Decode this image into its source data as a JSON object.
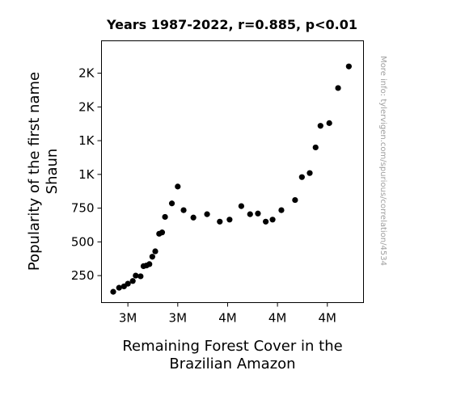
{
  "chart_data": {
    "type": "scatter",
    "title": "Years 1987-2022, r=0.885, p<0.01",
    "xlabel": [
      "Remaining Forest Cover in the",
      "Brazilian Amazon"
    ],
    "ylabel": [
      "Popularity of the first name",
      "Shaun"
    ],
    "watermark": "More info: tylervigen.com/spurious/correlation/4534",
    "xlim": [
      3.258,
      3.526
    ],
    "ylim": [
      50,
      1990
    ],
    "x_ticks": [
      {
        "value": 3.285,
        "label": "3M"
      },
      {
        "value": 3.336,
        "label": "3M"
      },
      {
        "value": 3.387,
        "label": "4M"
      },
      {
        "value": 3.438,
        "label": "4M"
      },
      {
        "value": 3.489,
        "label": "4M"
      }
    ],
    "y_ticks": [
      {
        "value": 250,
        "label": "250"
      },
      {
        "value": 500,
        "label": "500"
      },
      {
        "value": 750,
        "label": "750"
      },
      {
        "value": 1000,
        "label": "1K"
      },
      {
        "value": 1250,
        "label": "1K"
      },
      {
        "value": 1500,
        "label": "2K"
      },
      {
        "value": 1750,
        "label": "2K"
      }
    ],
    "grid": false,
    "marker_color": "#000000",
    "points": [
      {
        "x": 3.27,
        "y": 130
      },
      {
        "x": 3.276,
        "y": 160
      },
      {
        "x": 3.281,
        "y": 170
      },
      {
        "x": 3.285,
        "y": 190
      },
      {
        "x": 3.29,
        "y": 210
      },
      {
        "x": 3.293,
        "y": 250
      },
      {
        "x": 3.298,
        "y": 245
      },
      {
        "x": 3.301,
        "y": 320
      },
      {
        "x": 3.304,
        "y": 325
      },
      {
        "x": 3.307,
        "y": 335
      },
      {
        "x": 3.31,
        "y": 390
      },
      {
        "x": 3.313,
        "y": 430
      },
      {
        "x": 3.317,
        "y": 560
      },
      {
        "x": 3.32,
        "y": 570
      },
      {
        "x": 3.323,
        "y": 685
      },
      {
        "x": 3.33,
        "y": 785
      },
      {
        "x": 3.336,
        "y": 910
      },
      {
        "x": 3.342,
        "y": 735
      },
      {
        "x": 3.352,
        "y": 680
      },
      {
        "x": 3.366,
        "y": 705
      },
      {
        "x": 3.379,
        "y": 650
      },
      {
        "x": 3.389,
        "y": 665
      },
      {
        "x": 3.401,
        "y": 765
      },
      {
        "x": 3.41,
        "y": 705
      },
      {
        "x": 3.418,
        "y": 710
      },
      {
        "x": 3.426,
        "y": 650
      },
      {
        "x": 3.433,
        "y": 665
      },
      {
        "x": 3.442,
        "y": 735
      },
      {
        "x": 3.456,
        "y": 810
      },
      {
        "x": 3.463,
        "y": 980
      },
      {
        "x": 3.471,
        "y": 1010
      },
      {
        "x": 3.477,
        "y": 1200
      },
      {
        "x": 3.482,
        "y": 1360
      },
      {
        "x": 3.491,
        "y": 1380
      },
      {
        "x": 3.5,
        "y": 1640
      },
      {
        "x": 3.511,
        "y": 1800
      }
    ]
  }
}
